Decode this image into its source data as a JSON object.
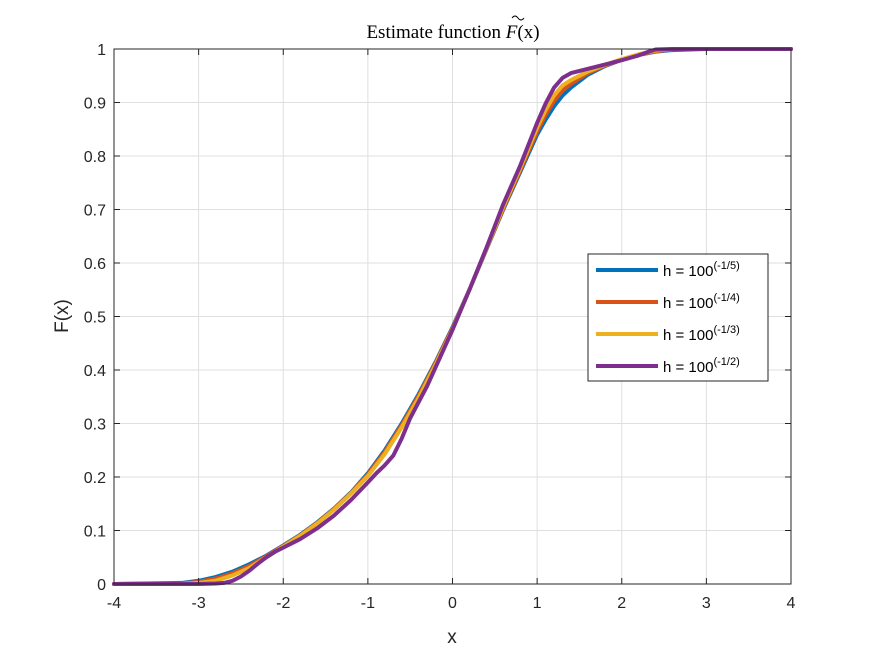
{
  "chart_data": {
    "type": "line",
    "title": {
      "prefix": "Estimate function ",
      "symbol": "F",
      "suffix": "(x)"
    },
    "xlabel": "x",
    "ylabel": "F(x)",
    "xlim": [
      -4,
      4
    ],
    "ylim": [
      0,
      1
    ],
    "xticks": [
      -4,
      -3,
      -2,
      -1,
      0,
      1,
      2,
      3,
      4
    ],
    "yticks": [
      0,
      0.1,
      0.2,
      0.3,
      0.4,
      0.5,
      0.6,
      0.7,
      0.8,
      0.9,
      1
    ],
    "grid": true,
    "legend_position": "right",
    "series": [
      {
        "name": "h = 100",
        "exponent": "(-1/5)",
        "color": "#0072BD",
        "x": [
          -4,
          -3.2,
          -3.0,
          -2.8,
          -2.6,
          -2.4,
          -2.2,
          -2.0,
          -1.8,
          -1.6,
          -1.4,
          -1.2,
          -1.0,
          -0.8,
          -0.6,
          -0.4,
          -0.2,
          0,
          0.2,
          0.4,
          0.6,
          0.8,
          1.0,
          1.1,
          1.2,
          1.3,
          1.4,
          1.6,
          1.8,
          2.0,
          2.2,
          2.4,
          2.6,
          2.8,
          3.0,
          4
        ],
        "y": [
          0,
          0.002,
          0.006,
          0.013,
          0.023,
          0.037,
          0.053,
          0.072,
          0.092,
          0.115,
          0.141,
          0.171,
          0.207,
          0.25,
          0.3,
          0.355,
          0.415,
          0.48,
          0.55,
          0.625,
          0.7,
          0.77,
          0.84,
          0.868,
          0.893,
          0.913,
          0.928,
          0.952,
          0.968,
          0.98,
          0.989,
          0.995,
          0.998,
          0.999,
          1.0,
          1.0
        ]
      },
      {
        "name": "h = 100",
        "exponent": "(-1/4)",
        "color": "#D95319",
        "x": [
          -4,
          -3.2,
          -3.0,
          -2.8,
          -2.6,
          -2.4,
          -2.2,
          -2.0,
          -1.8,
          -1.6,
          -1.4,
          -1.2,
          -1.0,
          -0.8,
          -0.6,
          -0.4,
          -0.2,
          0,
          0.2,
          0.4,
          0.6,
          0.8,
          1.0,
          1.1,
          1.2,
          1.3,
          1.4,
          1.6,
          1.8,
          2.0,
          2.2,
          2.4,
          2.6,
          2.8,
          3.0,
          4
        ],
        "y": [
          0,
          0.001,
          0.004,
          0.01,
          0.02,
          0.034,
          0.052,
          0.071,
          0.091,
          0.114,
          0.14,
          0.17,
          0.205,
          0.247,
          0.297,
          0.352,
          0.413,
          0.478,
          0.55,
          0.626,
          0.702,
          0.773,
          0.846,
          0.877,
          0.903,
          0.922,
          0.935,
          0.955,
          0.969,
          0.98,
          0.989,
          0.996,
          0.999,
          1.0,
          1.0,
          1.0
        ]
      },
      {
        "name": "h = 100",
        "exponent": "(-1/3)",
        "color": "#EDB120",
        "x": [
          -4,
          -3.2,
          -3.0,
          -2.8,
          -2.6,
          -2.4,
          -2.2,
          -2.0,
          -1.8,
          -1.6,
          -1.4,
          -1.2,
          -1.0,
          -0.8,
          -0.6,
          -0.4,
          -0.2,
          0,
          0.2,
          0.4,
          0.6,
          0.8,
          1.0,
          1.1,
          1.2,
          1.3,
          1.4,
          1.6,
          1.8,
          2.0,
          2.2,
          2.4,
          2.6,
          2.8,
          3.0,
          4
        ],
        "y": [
          0,
          0.0,
          0.002,
          0.006,
          0.016,
          0.03,
          0.05,
          0.07,
          0.09,
          0.113,
          0.139,
          0.169,
          0.202,
          0.243,
          0.293,
          0.348,
          0.41,
          0.476,
          0.55,
          0.627,
          0.705,
          0.777,
          0.853,
          0.886,
          0.913,
          0.932,
          0.942,
          0.958,
          0.97,
          0.981,
          0.99,
          0.997,
          1.0,
          1.0,
          1.0,
          1.0
        ]
      },
      {
        "name": "h = 100",
        "exponent": "(-1/2)",
        "color": "#7E2F8E",
        "x": [
          -4,
          -3.2,
          -3.0,
          -2.8,
          -2.7,
          -2.6,
          -2.5,
          -2.4,
          -2.3,
          -2.2,
          -2.1,
          -2.0,
          -1.8,
          -1.6,
          -1.4,
          -1.2,
          -1.0,
          -0.9,
          -0.8,
          -0.7,
          -0.6,
          -0.5,
          -0.4,
          -0.3,
          -0.2,
          -0.1,
          0,
          0.2,
          0.4,
          0.6,
          0.8,
          0.9,
          1.0,
          1.1,
          1.2,
          1.3,
          1.4,
          1.6,
          1.8,
          2.0,
          2.2,
          2.3,
          2.4,
          2.6,
          3.0,
          4
        ],
        "y": [
          0,
          0.0,
          0.0,
          0.001,
          0.002,
          0.006,
          0.014,
          0.025,
          0.038,
          0.05,
          0.06,
          0.068,
          0.084,
          0.104,
          0.128,
          0.157,
          0.19,
          0.207,
          0.222,
          0.24,
          0.272,
          0.31,
          0.34,
          0.37,
          0.405,
          0.44,
          0.475,
          0.55,
          0.628,
          0.71,
          0.782,
          0.822,
          0.862,
          0.898,
          0.928,
          0.946,
          0.955,
          0.963,
          0.971,
          0.979,
          0.988,
          0.994,
          0.999,
          1.0,
          1.0,
          1.0
        ]
      }
    ]
  }
}
